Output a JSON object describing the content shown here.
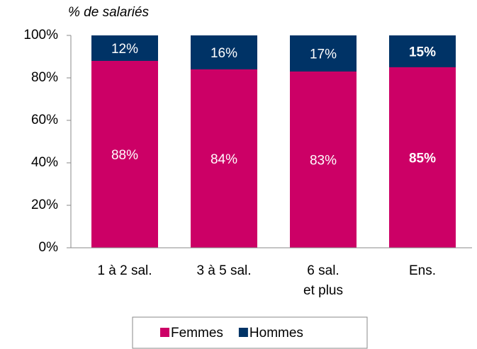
{
  "chart_data": {
    "type": "stacked_bar",
    "y_label": "% de salariés",
    "categories": [
      "1 à 2 sal.",
      "3 à 5 sal.",
      "6 sal.\net plus",
      "Ens."
    ],
    "series": [
      {
        "name": "Femmes",
        "color": "#cc0066",
        "values": [
          88,
          84,
          83,
          85
        ],
        "value_labels": [
          "88%",
          "84%",
          "83%",
          "85%"
        ]
      },
      {
        "name": "Hommes",
        "color": "#003366",
        "values": [
          12,
          16,
          17,
          15
        ],
        "value_labels": [
          "12%",
          "16%",
          "17%",
          "15%"
        ]
      }
    ],
    "highlight": 3,
    "ylim": [
      0,
      100
    ],
    "yticks": [
      {
        "value": 0,
        "label": "0%"
      },
      {
        "value": 20,
        "label": "20%"
      },
      {
        "value": 40,
        "label": "40%"
      },
      {
        "value": 60,
        "label": "60%"
      },
      {
        "value": 80,
        "label": "80%"
      },
      {
        "value": 100,
        "label": "100%"
      }
    ],
    "legend": "bottom"
  }
}
